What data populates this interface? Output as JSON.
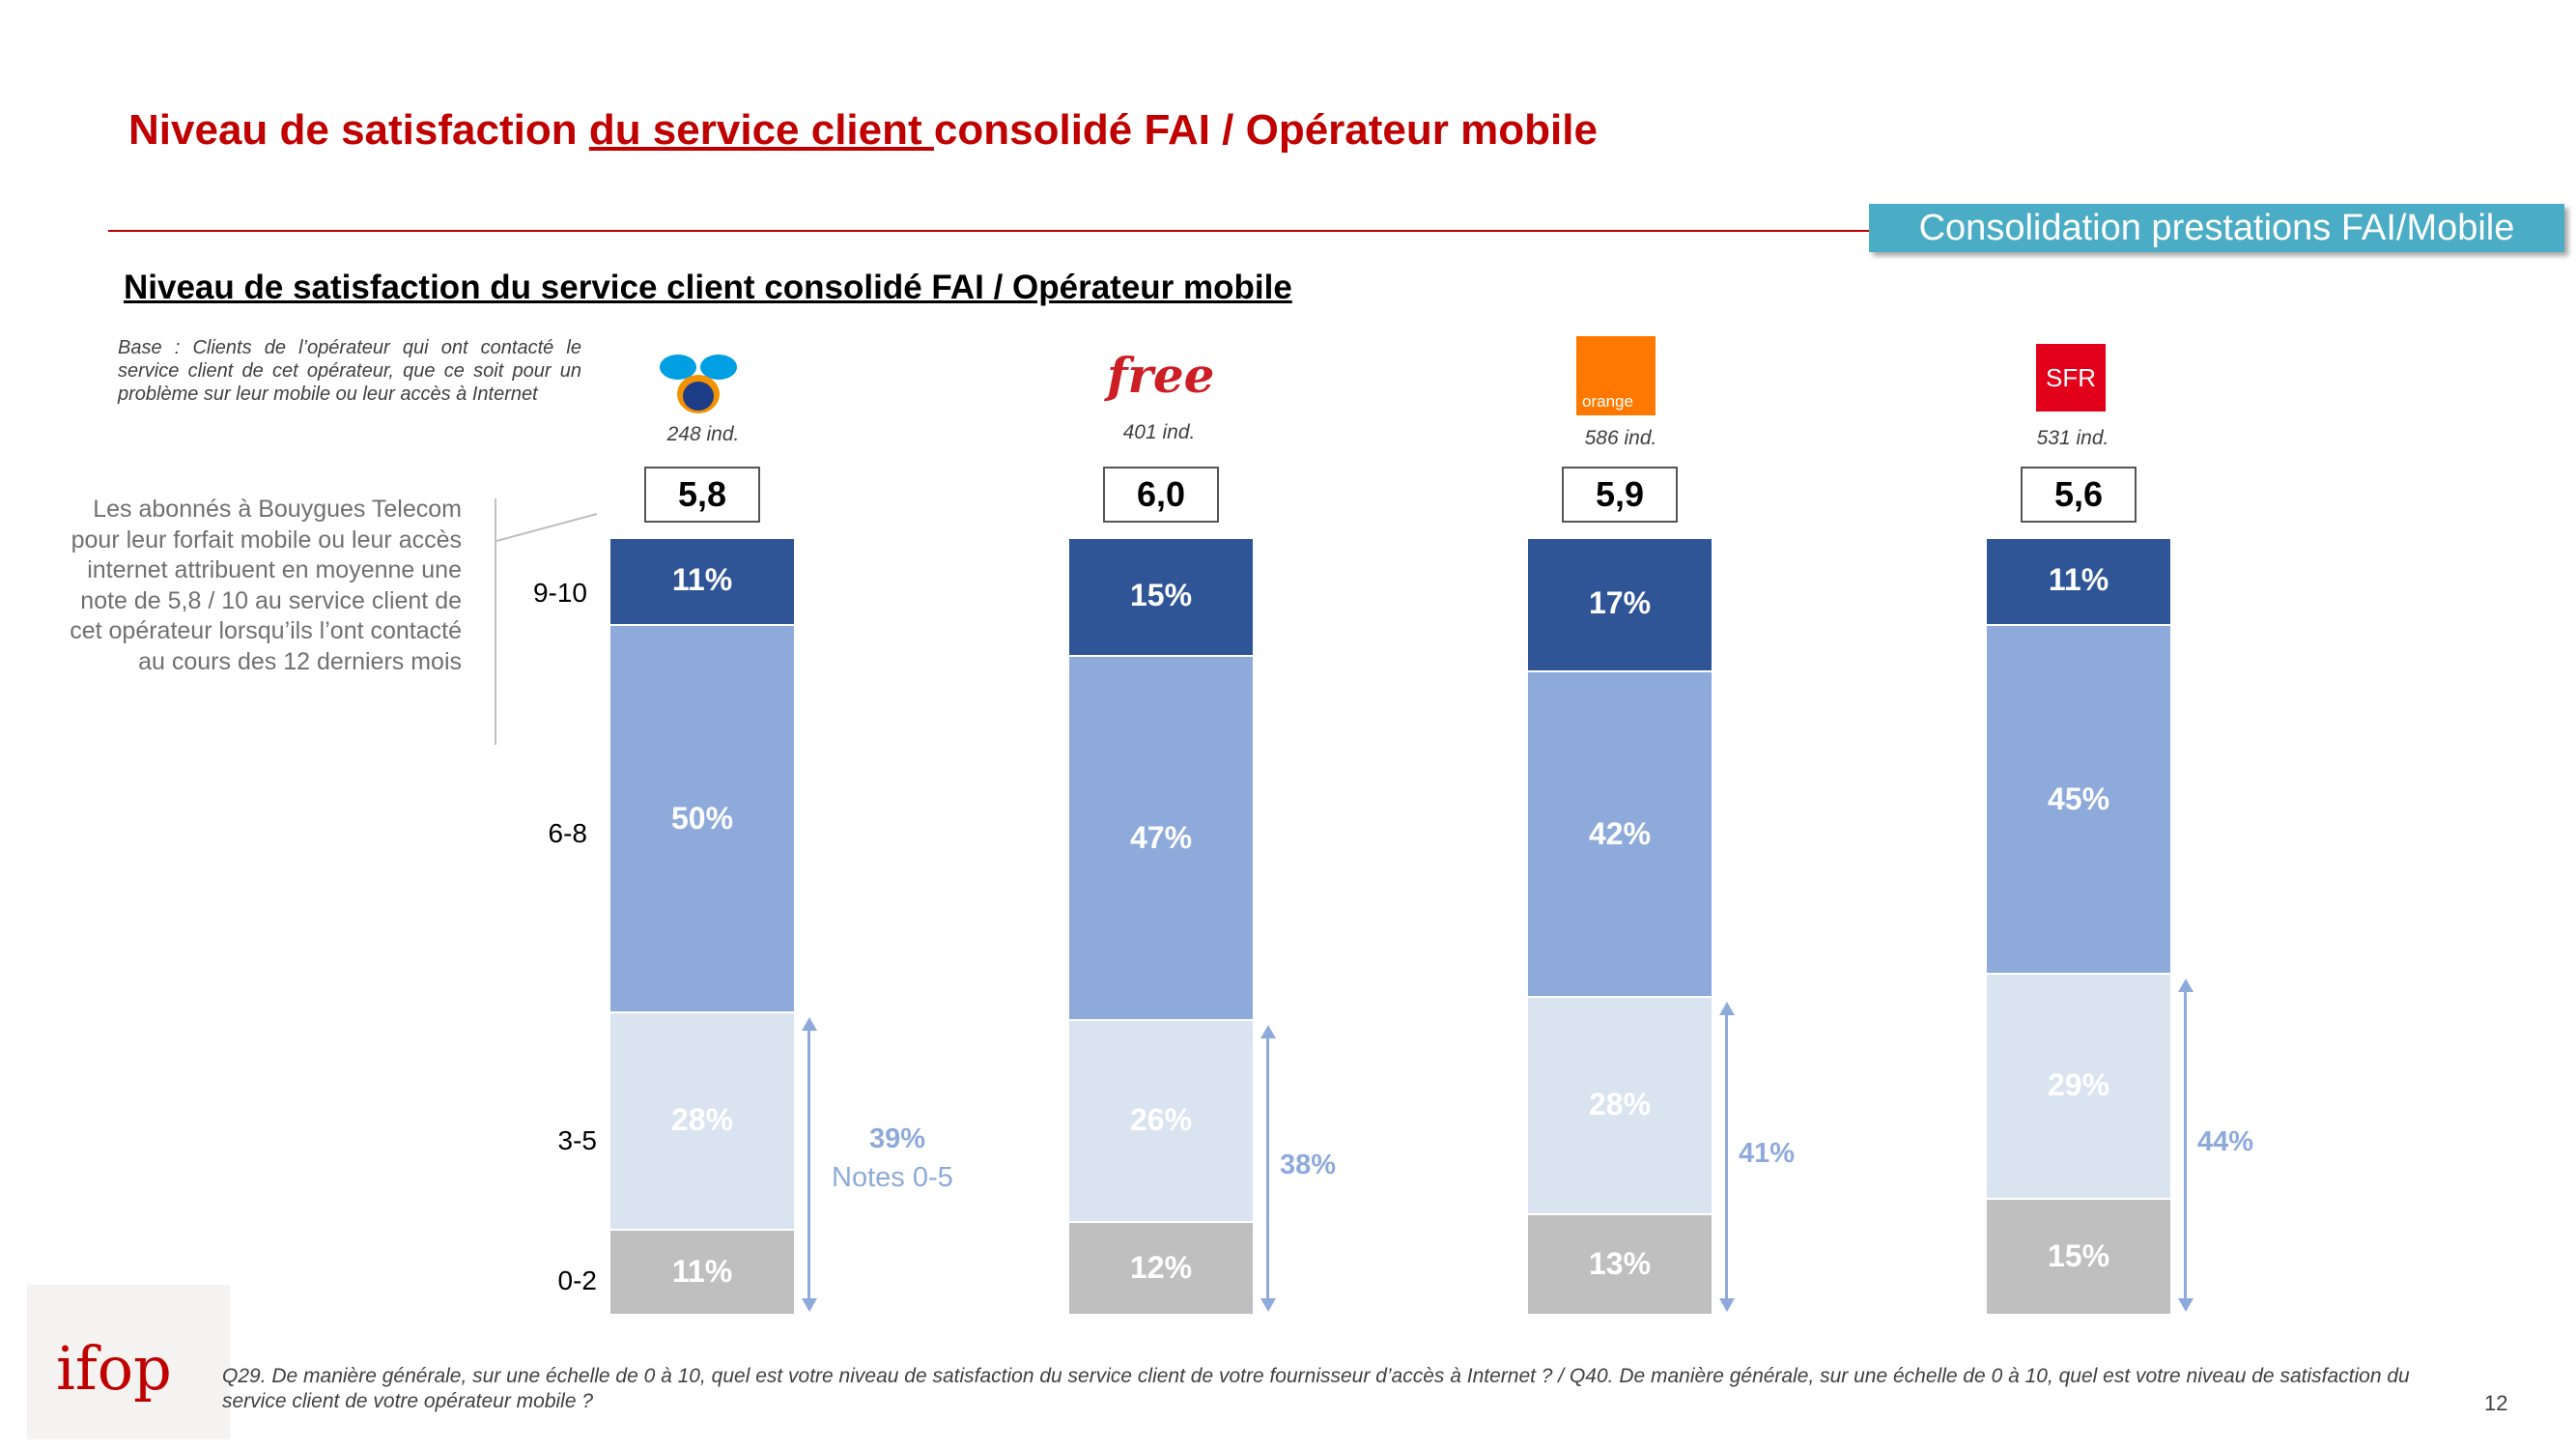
{
  "title": {
    "part1": "Niveau de satisfaction ",
    "part2": "du service client ",
    "part3": "consolidé FAI / Opérateur mobile"
  },
  "tag": "Consolidation prestations FAI/Mobile",
  "subtitle": "Niveau de satisfaction du service client consolidé FAI / Opérateur mobile",
  "base_note": "Base : Clients de l’opérateur qui ont contacté le service client de cet opérateur, que ce soit pour un problème sur leur mobile ou leur accès à Internet",
  "callout": "Les abonnés à Bouygues Telecom pour leur forfait mobile ou leur accès internet attribuent en moyenne une note de 5,8 / 10 au service client de cet opérateur lorsqu’ils l’ont contacté au cours des 12 derniers mois",
  "notes_label": "Notes 0-5",
  "footer": "Q29. De manière générale, sur une échelle de 0 à 10, quel est votre niveau de satisfaction du service client de votre fournisseur d’accès à Internet ? / Q40. De manière générale, sur une échelle de 0 à 10, quel est votre niveau de satisfaction du service client de votre opérateur mobile ?",
  "page_number": "12",
  "logos": {
    "free": "free",
    "orange": "orange",
    "sfr": "SFR",
    "ifop": "ifop"
  },
  "colors": {
    "seg_9_10": "#2f5597",
    "seg_6_8": "#8eaadb",
    "seg_3_5": "#dae3f0",
    "seg_0_2": "#bfbfbf",
    "title_red": "#c00000",
    "tag_teal": "#4bacc6"
  },
  "chart_data": {
    "type": "bar",
    "stacked": true,
    "categories": [
      "Bouygues Telecom",
      "Free",
      "Orange",
      "SFR"
    ],
    "category_labels": [
      "9-10",
      "6-8",
      "3-5",
      "0-2"
    ],
    "samples": [
      "248 ind.",
      "401 ind.",
      "586 ind.",
      "531 ind."
    ],
    "scores": [
      "5,8",
      "6,0",
      "5,9",
      "5,6"
    ],
    "series": [
      {
        "name": "9-10",
        "values": [
          11,
          15,
          17,
          11
        ]
      },
      {
        "name": "6-8",
        "values": [
          50,
          47,
          42,
          45
        ]
      },
      {
        "name": "3-5",
        "values": [
          28,
          26,
          28,
          29
        ]
      },
      {
        "name": "0-2",
        "values": [
          11,
          12,
          13,
          15
        ]
      }
    ],
    "notes_0_5": [
      39,
      38,
      41,
      44
    ],
    "unit": "%"
  }
}
